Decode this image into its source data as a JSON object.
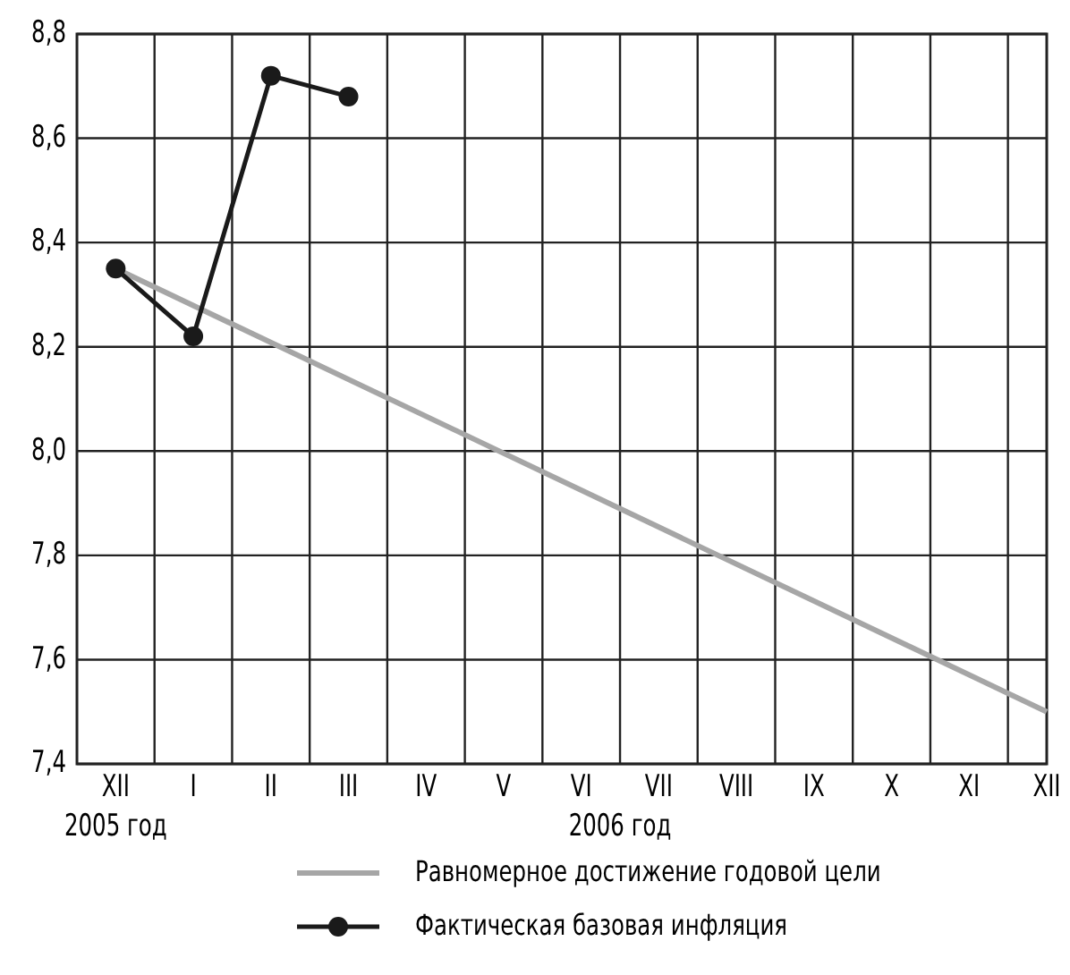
{
  "chart_data": {
    "type": "line",
    "categories": [
      "XII",
      "I",
      "II",
      "III",
      "IV",
      "V",
      "VI",
      "VII",
      "VIII",
      "IX",
      "X",
      "XI",
      "XII"
    ],
    "series": [
      {
        "name": "Равномерное достижение годовой цели",
        "color": "#a6a6a6",
        "marker": "none",
        "values": [
          8.35,
          null,
          null,
          null,
          null,
          null,
          null,
          null,
          null,
          null,
          null,
          null,
          7.5
        ]
      },
      {
        "name": "Фактическая базовая инфляция",
        "color": "#1a1a1a",
        "marker": "circle",
        "values": [
          8.35,
          8.22,
          8.72,
          8.68,
          null,
          null,
          null,
          null,
          null,
          null,
          null,
          null,
          null
        ]
      }
    ],
    "ylim": [
      7.4,
      8.8
    ],
    "yticks": [
      {
        "value": 7.4,
        "label": "7,4"
      },
      {
        "value": 7.6,
        "label": "7,6"
      },
      {
        "value": 7.8,
        "label": "7,8"
      },
      {
        "value": 8.0,
        "label": "8,0"
      },
      {
        "value": 8.2,
        "label": "8,2"
      },
      {
        "value": 8.4,
        "label": "8,4"
      },
      {
        "value": 8.6,
        "label": "8,6"
      },
      {
        "value": 8.8,
        "label": "8,8"
      }
    ],
    "grid": true,
    "legend": "bottom",
    "annotations": [
      "2005 год",
      "2006 год"
    ]
  }
}
